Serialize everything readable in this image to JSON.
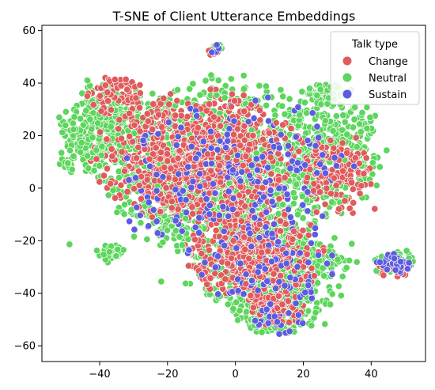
{
  "chart_data": {
    "type": "scatter",
    "title": "T-SNE of Client Utterance Embeddings",
    "xlabel": "",
    "ylabel": "",
    "xlim": [
      -57,
      56
    ],
    "ylim": [
      -66,
      62
    ],
    "xticks": [
      -40,
      -20,
      0,
      20,
      40
    ],
    "yticks": [
      -60,
      -40,
      -20,
      0,
      20,
      40,
      60
    ],
    "xtick_labels": [
      "−40",
      "−20",
      "0",
      "20",
      "40"
    ],
    "ytick_labels": [
      "−60",
      "−40",
      "−20",
      "0",
      "20",
      "40",
      "60"
    ],
    "grid": false,
    "legend": {
      "title": "Talk type",
      "placement": "top-right",
      "entries": [
        "Change",
        "Neutral",
        "Sustain"
      ]
    },
    "colors": {
      "Change": "#e05c5c",
      "Neutral": "#5cd65c",
      "Sustain": "#5c5ce0"
    },
    "clusters": [
      {
        "series": "Neutral",
        "cx": -5,
        "cy": 8,
        "rx": 32,
        "ry": 30,
        "count": 1500
      },
      {
        "series": "Neutral",
        "cx": 10,
        "cy": -30,
        "rx": 22,
        "ry": 18,
        "count": 650
      },
      {
        "series": "Neutral",
        "cx": -38,
        "cy": 25,
        "rx": 12,
        "ry": 15,
        "count": 260
      },
      {
        "series": "Neutral",
        "cx": 28,
        "cy": 15,
        "rx": 14,
        "ry": 22,
        "count": 360
      },
      {
        "series": "Neutral",
        "cx": 12,
        "cy": -48,
        "rx": 11,
        "ry": 8,
        "count": 200
      },
      {
        "series": "Neutral",
        "cx": -37,
        "cy": -25,
        "rx": 4,
        "ry": 3,
        "count": 30
      },
      {
        "series": "Neutral",
        "cx": 47,
        "cy": -28,
        "rx": 6,
        "ry": 5,
        "count": 40
      },
      {
        "series": "Neutral",
        "cx": -6,
        "cy": 53,
        "rx": 2,
        "ry": 2,
        "count": 12
      },
      {
        "series": "Neutral",
        "cx": 26,
        "cy": 36,
        "rx": 6,
        "ry": 4,
        "count": 60
      },
      {
        "series": "Neutral",
        "cx": -45,
        "cy": 15,
        "rx": 8,
        "ry": 10,
        "count": 90
      },
      {
        "series": "Change",
        "cx": -10,
        "cy": 12,
        "rx": 28,
        "ry": 22,
        "count": 900
      },
      {
        "series": "Change",
        "cx": 5,
        "cy": -25,
        "rx": 18,
        "ry": 16,
        "count": 450
      },
      {
        "series": "Change",
        "cx": 30,
        "cy": 5,
        "rx": 10,
        "ry": 14,
        "count": 160
      },
      {
        "series": "Change",
        "cx": 12,
        "cy": -45,
        "rx": 8,
        "ry": 7,
        "count": 110
      },
      {
        "series": "Change",
        "cx": -35,
        "cy": 35,
        "rx": 8,
        "ry": 8,
        "count": 80
      },
      {
        "series": "Change",
        "cx": 47,
        "cy": -30,
        "rx": 5,
        "ry": 4,
        "count": 30
      },
      {
        "series": "Change",
        "cx": -6,
        "cy": 52,
        "rx": 2,
        "ry": 2,
        "count": 8
      },
      {
        "series": "Sustain",
        "cx": 0,
        "cy": 2,
        "rx": 32,
        "ry": 30,
        "count": 220
      },
      {
        "series": "Sustain",
        "cx": 47,
        "cy": -29,
        "rx": 5,
        "ry": 4,
        "count": 35
      },
      {
        "series": "Sustain",
        "cx": 10,
        "cy": -30,
        "rx": 18,
        "ry": 16,
        "count": 80
      },
      {
        "series": "Sustain",
        "cx": 12,
        "cy": -50,
        "rx": 8,
        "ry": 6,
        "count": 25
      },
      {
        "series": "Sustain",
        "cx": -6,
        "cy": 53,
        "rx": 2,
        "ry": 2,
        "count": 4
      }
    ]
  }
}
